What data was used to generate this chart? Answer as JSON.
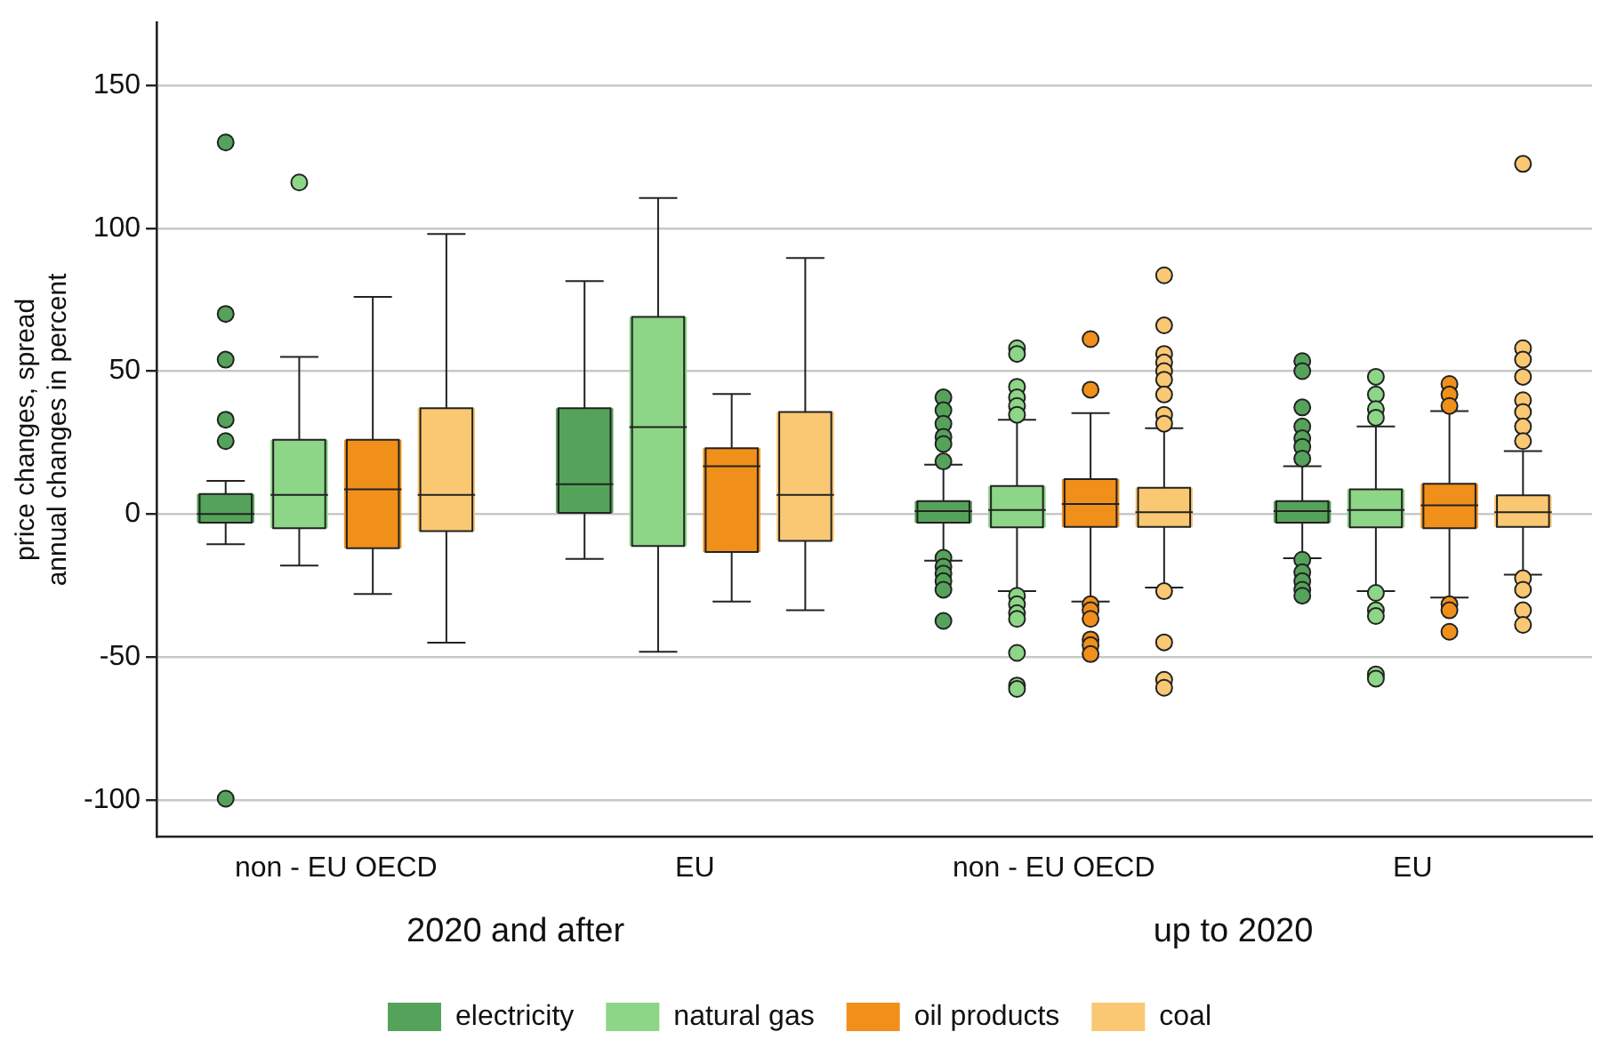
{
  "chart_data": {
    "type": "box",
    "ylabel": "price changes, spread\nannual changes in percent",
    "categories": [
      "non - EU OECD",
      "EU",
      "non - EU OECD",
      "EU"
    ],
    "annotations": [
      "2020 and after",
      "up to 2020"
    ],
    "ylim": [
      -113,
      172
    ],
    "yticks": [
      150,
      100,
      50,
      0,
      -50,
      -100
    ],
    "grid": "y",
    "legend": "bottom",
    "marker": "circle",
    "series": [
      {
        "name": "electricity",
        "color": "#55a35a",
        "boxes": [
          {
            "low": -10.6,
            "q1": -3,
            "median": 0,
            "q3": 7,
            "high": 11.6,
            "outliers": [
              130,
              70,
              54,
              33,
              25.5,
              -99.6
            ]
          },
          {
            "low": -15.7,
            "q1": 0.4,
            "median": 10.4,
            "q3": 37,
            "high": 81.5
          },
          {
            "low": -16.3,
            "q1": -3,
            "median": 1,
            "q3": 4.5,
            "high": 17.3,
            "outliers": [
              40.8,
              36.3,
              31.6,
              27,
              24.5,
              18.4,
              -15.3,
              -18.4,
              -20.8,
              -23.5,
              -26.5,
              -37.4
            ]
          },
          {
            "low": -15.5,
            "q1": -3,
            "median": 1,
            "q3": 4.5,
            "high": 16.7,
            "outliers": [
              53.5,
              50,
              37.3,
              30.6,
              26.5,
              23.5,
              19.4,
              -16,
              -20.4,
              -23.5,
              -26.5,
              -28.6
            ]
          }
        ]
      },
      {
        "name": "natural gas",
        "color": "#8dd587",
        "boxes": [
          {
            "low": -18,
            "q1": -5,
            "median": 6.7,
            "q3": 26,
            "high": 55,
            "outliers": [
              116
            ]
          },
          {
            "low": -48.2,
            "q1": -11.2,
            "median": 30.4,
            "q3": 69,
            "high": 110.6
          },
          {
            "low": -27,
            "q1": -4.7,
            "median": 1.4,
            "q3": 9.8,
            "high": 33,
            "outliers": [
              58,
              56,
              44.5,
              40.8,
              37.8,
              34.7,
              -28.6,
              -31.6,
              -34.7,
              -36.7,
              -48.6,
              -60,
              -61.2
            ]
          },
          {
            "low": -27,
            "q1": -4.7,
            "median": 1.4,
            "q3": 8.6,
            "high": 30.6,
            "outliers": [
              48,
              41.8,
              36.7,
              33.7,
              -27.6,
              -33.7,
              -35.7,
              -56.1,
              -57.6
            ]
          }
        ]
      },
      {
        "name": "oil products",
        "color": "#f0901a",
        "boxes": [
          {
            "low": -28,
            "q1": -12,
            "median": 8.6,
            "q3": 26,
            "high": 76
          },
          {
            "low": -30.6,
            "q1": -13.3,
            "median": 16.7,
            "q3": 23,
            "high": 42
          },
          {
            "low": -30.6,
            "q1": -4.5,
            "median": 3.5,
            "q3": 12.2,
            "high": 35.3,
            "outliers": [
              61.2,
              43.5,
              -31.6,
              -33.7,
              -36.7,
              -43.9,
              -45.9,
              -49
            ]
          },
          {
            "low": -29.2,
            "q1": -5,
            "median": 3,
            "q3": 10.6,
            "high": 36,
            "outliers": [
              45.5,
              41.8,
              37.8,
              -31.6,
              -33.7,
              -41.2
            ]
          }
        ]
      },
      {
        "name": "coal",
        "color": "#fac873",
        "boxes": [
          {
            "low": -45,
            "q1": -6,
            "median": 6.7,
            "q3": 37,
            "high": 98
          },
          {
            "low": -33.7,
            "q1": -9.4,
            "median": 6.7,
            "q3": 35.7,
            "high": 89.6
          },
          {
            "low": -25.7,
            "q1": -4.5,
            "median": 0.6,
            "q3": 9.2,
            "high": 30,
            "outliers": [
              83.5,
              66,
              56,
              53,
              50,
              47,
              41.8,
              34.7,
              31.6,
              -27,
              -44.9,
              -58,
              -60.8
            ]
          },
          {
            "low": -21.2,
            "q1": -4.5,
            "median": 0.6,
            "q3": 6.5,
            "high": 22,
            "outliers": [
              122.5,
              58,
              54,
              48,
              39.8,
              35.7,
              30.6,
              25.5,
              -22.5,
              -26.5,
              -33.7,
              -38.8
            ]
          }
        ]
      }
    ]
  }
}
